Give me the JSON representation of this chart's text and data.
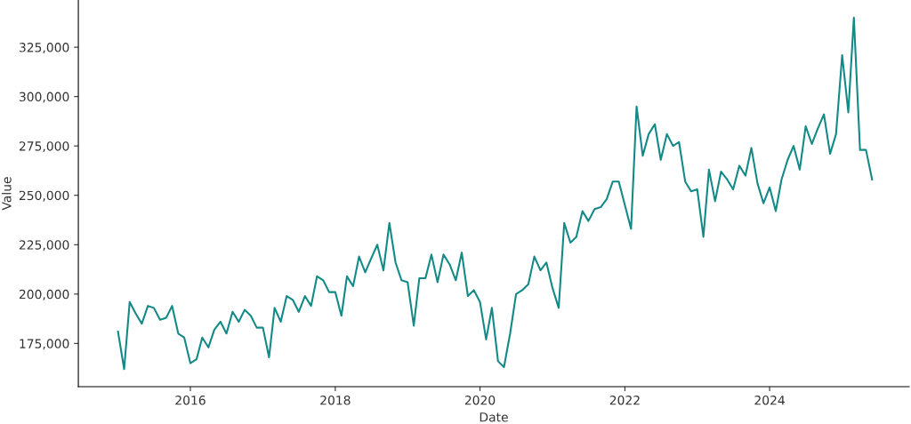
{
  "chart_data": {
    "type": "line",
    "xlabel": "Date",
    "ylabel": "Value",
    "x": [
      "2015-01",
      "2015-02",
      "2015-03",
      "2015-04",
      "2015-05",
      "2015-06",
      "2015-07",
      "2015-08",
      "2015-09",
      "2015-10",
      "2015-11",
      "2015-12",
      "2016-01",
      "2016-02",
      "2016-03",
      "2016-04",
      "2016-05",
      "2016-06",
      "2016-07",
      "2016-08",
      "2016-09",
      "2016-10",
      "2016-11",
      "2016-12",
      "2017-01",
      "2017-02",
      "2017-03",
      "2017-04",
      "2017-05",
      "2017-06",
      "2017-07",
      "2017-08",
      "2017-09",
      "2017-10",
      "2017-11",
      "2017-12",
      "2018-01",
      "2018-02",
      "2018-03",
      "2018-04",
      "2018-05",
      "2018-06",
      "2018-07",
      "2018-08",
      "2018-09",
      "2018-10",
      "2018-11",
      "2018-12",
      "2019-01",
      "2019-02",
      "2019-03",
      "2019-04",
      "2019-05",
      "2019-06",
      "2019-07",
      "2019-08",
      "2019-09",
      "2019-10",
      "2019-11",
      "2019-12",
      "2020-01",
      "2020-02",
      "2020-03",
      "2020-04",
      "2020-05",
      "2020-06",
      "2020-07",
      "2020-08",
      "2020-09",
      "2020-10",
      "2020-11",
      "2020-12",
      "2021-01",
      "2021-02",
      "2021-03",
      "2021-04",
      "2021-05",
      "2021-06",
      "2021-07",
      "2021-08",
      "2021-09",
      "2021-10",
      "2021-11",
      "2021-12",
      "2022-01",
      "2022-02",
      "2022-03",
      "2022-04",
      "2022-05",
      "2022-06",
      "2022-07",
      "2022-08",
      "2022-09",
      "2022-10",
      "2022-11",
      "2022-12",
      "2023-01",
      "2023-02",
      "2023-03",
      "2023-04",
      "2023-05",
      "2023-06",
      "2023-07",
      "2023-08",
      "2023-09",
      "2023-10",
      "2023-11",
      "2023-12",
      "2024-01",
      "2024-02",
      "2024-03",
      "2024-04",
      "2024-05",
      "2024-06",
      "2024-07",
      "2024-08",
      "2024-09",
      "2024-10",
      "2024-11",
      "2024-12",
      "2025-01",
      "2025-02",
      "2025-03",
      "2025-04",
      "2025-05",
      "2025-06"
    ],
    "series": [
      {
        "color": "#138a87",
        "values": [
          181000,
          162000,
          196000,
          190000,
          185000,
          194000,
          193000,
          187000,
          188000,
          194000,
          180000,
          178000,
          165000,
          167000,
          178000,
          173000,
          182000,
          186000,
          180000,
          191000,
          186000,
          192000,
          189000,
          183000,
          183000,
          168000,
          193000,
          186000,
          199000,
          197000,
          191000,
          199000,
          194000,
          209000,
          207000,
          201000,
          201000,
          189000,
          209000,
          204000,
          219000,
          211000,
          218000,
          225000,
          212000,
          236000,
          216000,
          207000,
          206000,
          184000,
          208000,
          208000,
          220000,
          206000,
          220000,
          215000,
          207000,
          221000,
          199000,
          202000,
          196000,
          177000,
          193000,
          166000,
          163000,
          180000,
          200000,
          202000,
          205000,
          219000,
          212000,
          216000,
          203000,
          193000,
          236000,
          226000,
          229000,
          242000,
          237000,
          243000,
          244000,
          248000,
          257000,
          257000,
          245000,
          233000,
          295000,
          270000,
          281000,
          286000,
          268000,
          281000,
          275000,
          277000,
          257000,
          252000,
          253000,
          229000,
          263000,
          247000,
          262000,
          258000,
          253000,
          265000,
          260000,
          274000,
          256000,
          246000,
          254000,
          242000,
          258000,
          268000,
          275000,
          263000,
          285000,
          276000,
          284000,
          291000,
          271000,
          281000,
          321000,
          292000,
          340000,
          273000,
          273000,
          258000
        ]
      }
    ],
    "xlim": [
      "2014-06-15",
      "2025-12-05"
    ],
    "xticks": [
      {
        "value": "2016",
        "label": "2016"
      },
      {
        "value": "2018",
        "label": "2018"
      },
      {
        "value": "2020",
        "label": "2020"
      },
      {
        "value": "2022",
        "label": "2022"
      },
      {
        "value": "2024",
        "label": "2024"
      }
    ],
    "ylim": [
      153100,
      348900
    ],
    "yticks": [
      {
        "value": 175000,
        "label": "175,000"
      },
      {
        "value": 200000,
        "label": "200,000"
      },
      {
        "value": 225000,
        "label": "225,000"
      },
      {
        "value": 250000,
        "label": "250,000"
      },
      {
        "value": 275000,
        "label": "275,000"
      },
      {
        "value": 300000,
        "label": "300,000"
      },
      {
        "value": 325000,
        "label": "325,000"
      }
    ],
    "grid": false,
    "legend": false,
    "marker": "none",
    "line_style": "solid"
  }
}
